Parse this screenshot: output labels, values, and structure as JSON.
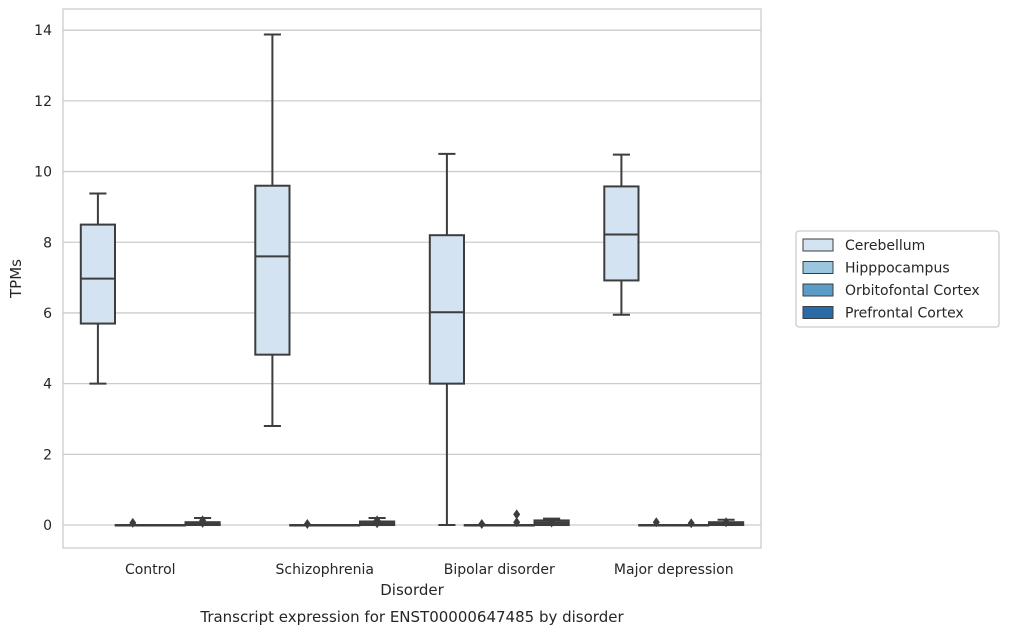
{
  "caption": "Transcript expression for ENST00000647485 by disorder",
  "chart_data": {
    "type": "box",
    "title": "",
    "xlabel": "Disorder",
    "ylabel": "TPMs",
    "ylim": [
      -0.65,
      14.6
    ],
    "yticks": [
      0,
      2,
      4,
      6,
      8,
      10,
      12,
      14
    ],
    "grid": true,
    "legend_position": "right",
    "categories": [
      "Control",
      "Schizophrenia",
      "Bipolar disorder",
      "Major depression"
    ],
    "series": [
      {
        "name": "Cerebellum",
        "color": "#d4e3f1",
        "boxes": [
          {
            "whislo": 4.0,
            "q1": 5.7,
            "med": 6.97,
            "q3": 8.5,
            "whishi": 9.38,
            "fliers": []
          },
          {
            "whislo": 2.8,
            "q1": 4.82,
            "med": 7.6,
            "q3": 9.6,
            "whishi": 13.88,
            "fliers": []
          },
          {
            "whislo": 0.0,
            "q1": 4.0,
            "med": 6.02,
            "q3": 8.2,
            "whishi": 10.5,
            "fliers": []
          },
          {
            "whislo": 5.95,
            "q1": 6.92,
            "med": 8.22,
            "q3": 9.58,
            "whishi": 10.48,
            "fliers": []
          }
        ]
      },
      {
        "name": "Hipppocampus",
        "color": "#9ac6df",
        "boxes": [
          {
            "whislo": 0.0,
            "q1": 0.0,
            "med": 0.0,
            "q3": 0.0,
            "whishi": 0.0,
            "fliers": [
              0.06
            ]
          },
          {
            "whislo": 0.0,
            "q1": 0.0,
            "med": 0.0,
            "q3": 0.0,
            "whishi": 0.0,
            "fliers": [
              0.03
            ]
          },
          {
            "whislo": 0.0,
            "q1": 0.0,
            "med": 0.0,
            "q3": 0.0,
            "whishi": 0.0,
            "fliers": [
              0.03
            ]
          },
          {
            "whislo": 0.0,
            "q1": 0.0,
            "med": 0.0,
            "q3": 0.0,
            "whishi": 0.0,
            "fliers": [
              0.08
            ]
          }
        ]
      },
      {
        "name": "Orbitofontal Cortex",
        "color": "#5a9bc8",
        "boxes": [
          {
            "whislo": 0.0,
            "q1": 0.0,
            "med": 0.0,
            "q3": 0.0,
            "whishi": 0.0,
            "fliers": []
          },
          {
            "whislo": 0.0,
            "q1": 0.0,
            "med": 0.0,
            "q3": 0.0,
            "whishi": 0.0,
            "fliers": []
          },
          {
            "whislo": 0.0,
            "q1": 0.0,
            "med": 0.0,
            "q3": 0.0,
            "whishi": 0.0,
            "fliers": [
              0.08,
              0.3
            ]
          },
          {
            "whislo": 0.0,
            "q1": 0.0,
            "med": 0.0,
            "q3": 0.0,
            "whishi": 0.0,
            "fliers": [
              0.05
            ]
          }
        ]
      },
      {
        "name": "Prefrontal Cortex",
        "color": "#2b6aa8",
        "boxes": [
          {
            "whislo": 0.0,
            "q1": 0.0,
            "med": 0.04,
            "q3": 0.08,
            "whishi": 0.2,
            "fliers": [
              0.06,
              0.13
            ]
          },
          {
            "whislo": 0.0,
            "q1": 0.0,
            "med": 0.04,
            "q3": 0.1,
            "whishi": 0.2,
            "fliers": [
              0.05,
              0.13
            ]
          },
          {
            "whislo": 0.0,
            "q1": 0.0,
            "med": 0.06,
            "q3": 0.13,
            "whishi": 0.18,
            "fliers": [
              0.07
            ]
          },
          {
            "whislo": 0.0,
            "q1": 0.0,
            "med": 0.04,
            "q3": 0.08,
            "whishi": 0.15,
            "fliers": [
              0.08
            ]
          }
        ]
      }
    ]
  }
}
